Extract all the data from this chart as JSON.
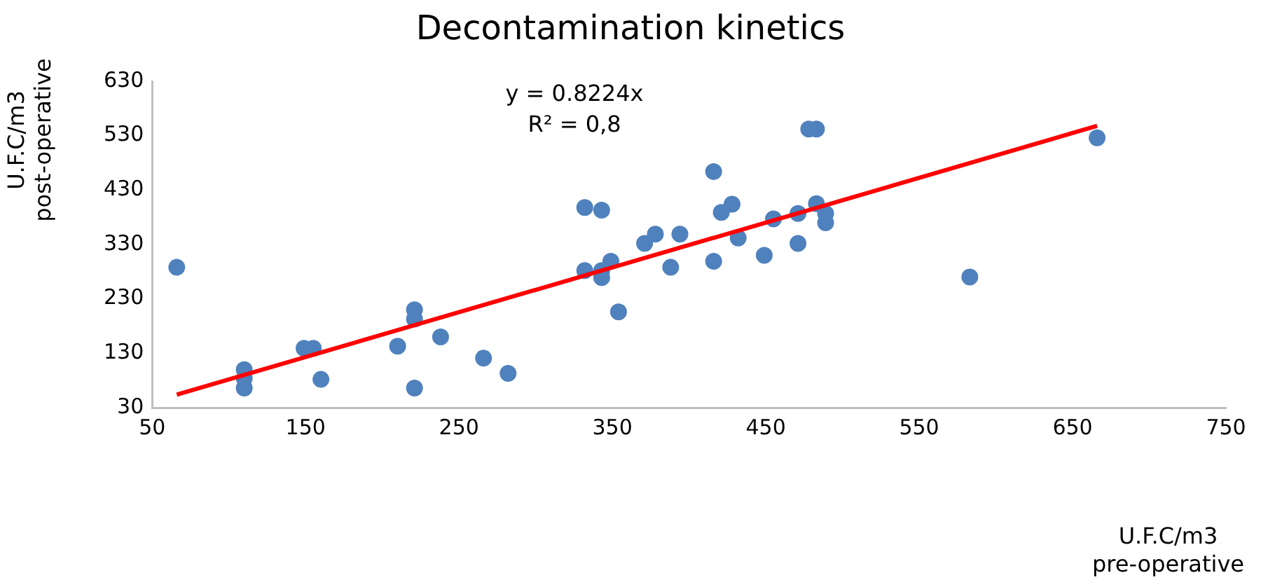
{
  "chart_data": {
    "type": "scatter",
    "title": "Decontamination kinetics",
    "xlabel": "U.F.C/m3\npre-operative",
    "ylabel": "U.F.C/m3\npost-operative",
    "annotations": [
      "y = 0.8224x",
      "R² = 0,8"
    ],
    "x": [
      66,
      110,
      110,
      110,
      149,
      155,
      160,
      210,
      221,
      221,
      221,
      238,
      266,
      282,
      332,
      343,
      332,
      343,
      343,
      349,
      354,
      371,
      378,
      388,
      394,
      416,
      416,
      421,
      428,
      432,
      449,
      455,
      471,
      471,
      478,
      483,
      483,
      489,
      489,
      583,
      666
    ],
    "series": [
      {
        "color": "#4f81bd",
        "marker": "circle",
        "values": [
          288,
          100,
          84,
          66,
          139,
          139,
          82,
          143,
          210,
          193,
          66,
          160,
          121,
          93,
          398,
          393,
          282,
          282,
          269,
          299,
          206,
          332,
          349,
          288,
          349,
          464,
          299,
          389,
          404,
          342,
          310,
          377,
          387,
          332,
          542,
          542,
          405,
          387,
          370,
          270,
          526
        ]
      },
      {
        "type": "line",
        "color": "#ff0000",
        "marker": "none",
        "line_style": "solid",
        "x": [
          66,
          666
        ],
        "values": [
          54,
          548
        ]
      }
    ],
    "xlim": [
      50,
      750
    ],
    "xticks": [
      50,
      150,
      250,
      350,
      450,
      550,
      650,
      750
    ],
    "ylim": [
      30,
      630
    ],
    "yticks": [
      30,
      130,
      230,
      330,
      430,
      530,
      630
    ],
    "grid": false,
    "legend": false
  }
}
